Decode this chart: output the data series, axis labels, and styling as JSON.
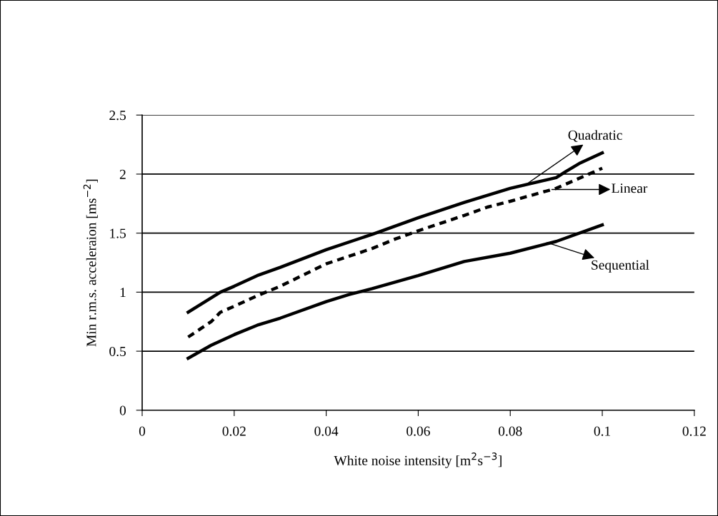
{
  "chart_data": {
    "type": "line",
    "xlabel": "White noise intensity [m$^{2}$s$^{−3}$]",
    "ylabel": "Min r.m.s. acceleraion [ms$^{−2}$]",
    "series": [
      {
        "color": "#000000",
        "line_style": "solid",
        "x": [
          0.01,
          0.017,
          0.02,
          0.025,
          0.03,
          0.04,
          0.05,
          0.06,
          0.07,
          0.08,
          0.09,
          0.092,
          0.095,
          0.1
        ],
        "values": [
          0.83,
          1.0,
          1.05,
          1.14,
          1.21,
          1.36,
          1.49,
          1.63,
          1.76,
          1.88,
          1.97,
          2.02,
          2.09,
          2.18
        ]
      },
      {
        "color": "#000000",
        "line_style": "dashed",
        "x": [
          0.01,
          0.015,
          0.017,
          0.02,
          0.025,
          0.03,
          0.04,
          0.05,
          0.055,
          0.06,
          0.07,
          0.075,
          0.08,
          0.09,
          0.1
        ],
        "values": [
          0.62,
          0.75,
          0.83,
          0.88,
          0.97,
          1.05,
          1.24,
          1.37,
          1.45,
          1.52,
          1.65,
          1.72,
          1.77,
          1.88,
          2.05
        ]
      },
      {
        "color": "#000000",
        "line_style": "solid",
        "x": [
          0.01,
          0.015,
          0.02,
          0.025,
          0.03,
          0.04,
          0.045,
          0.05,
          0.06,
          0.07,
          0.08,
          0.09,
          0.1
        ],
        "values": [
          0.44,
          0.55,
          0.64,
          0.72,
          0.78,
          0.92,
          0.98,
          1.03,
          1.14,
          1.26,
          1.33,
          1.43,
          1.57
        ]
      }
    ],
    "annotations": [
      {
        "text": "Quadratic",
        "x": 0.083,
        "y": 1.9
      },
      "Linear",
      {
        "text": "Sequential",
        "x": 0.088,
        "y": 1.42
      }
    ],
    "xlim": [
      0,
      0.12
    ],
    "xticks": [
      0,
      0.02,
      0.04,
      0.06,
      0.08,
      0.1,
      0.12
    ],
    "ylim": [
      0,
      2.5
    ],
    "yticks": [
      0,
      0.5,
      1,
      1.5,
      2,
      2.5
    ],
    "grid": "y",
    "marker": "none"
  }
}
